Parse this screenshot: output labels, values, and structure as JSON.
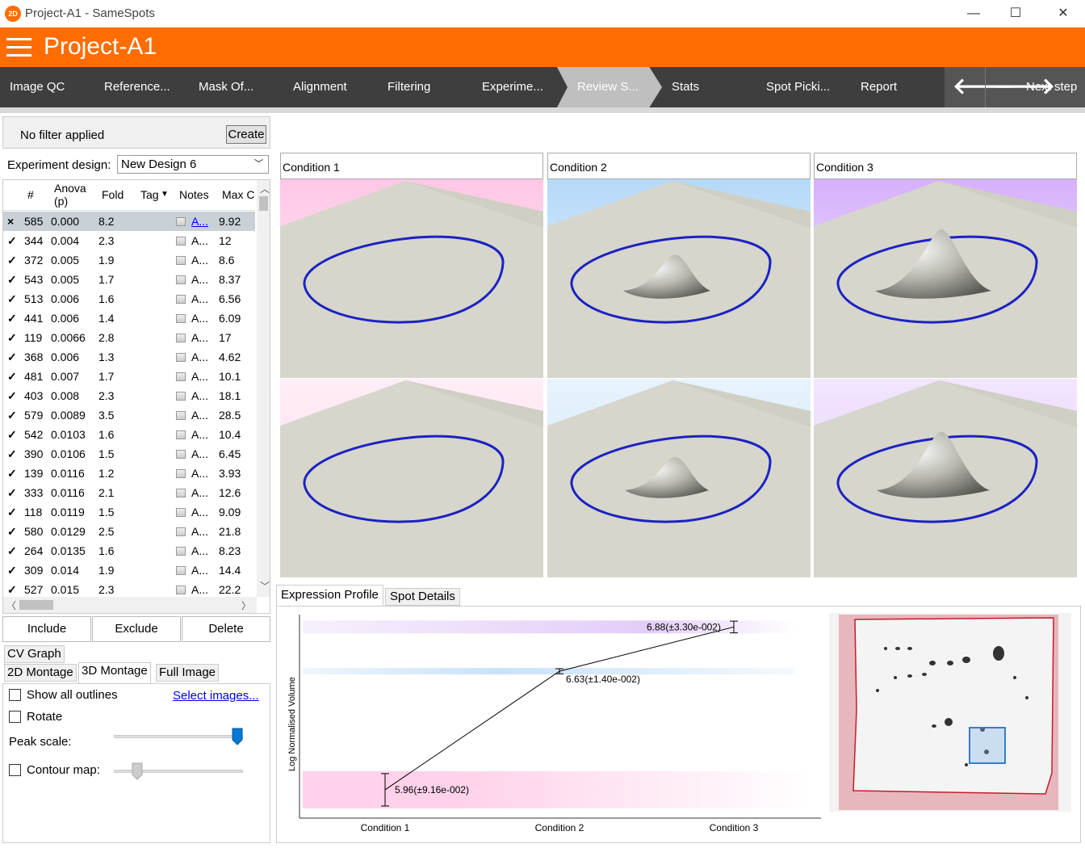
{
  "window": {
    "title": "Project-A1 - SameSpots",
    "logo": "2D",
    "minimize": "—",
    "maximize": "☐",
    "close": "✕"
  },
  "header": {
    "project": "Project-A1"
  },
  "nav": {
    "tabs": [
      "Image QC",
      "Reference...",
      "Mask Of...",
      "Alignment",
      "Filtering",
      "Experime...",
      "Review S...",
      "Stats",
      "Spot Picki...",
      "Report"
    ],
    "active_index": 6,
    "back": "🡐",
    "forward": "🡒",
    "next": "Next step"
  },
  "filter": {
    "text": "No filter applied",
    "create": "Create"
  },
  "design": {
    "label": "Experiment design:",
    "value": "New Design 6"
  },
  "table": {
    "headers": [
      "#",
      "Anova (p)",
      "Fold",
      "Tag",
      "Notes",
      "Max C"
    ],
    "rows": [
      {
        "mark": "×",
        "id": "585",
        "anova": "0.000",
        "fold": "8.2",
        "note": "A...",
        "max": "9.92",
        "selected": true
      },
      {
        "mark": "✓",
        "id": "344",
        "anova": "0.004",
        "fold": "2.3",
        "note": "A...",
        "max": "12"
      },
      {
        "mark": "✓",
        "id": "372",
        "anova": "0.005",
        "fold": "1.9",
        "note": "A...",
        "max": "8.6"
      },
      {
        "mark": "✓",
        "id": "543",
        "anova": "0.005",
        "fold": "1.7",
        "note": "A...",
        "max": "8.37"
      },
      {
        "mark": "✓",
        "id": "513",
        "anova": "0.006",
        "fold": "1.6",
        "note": "A...",
        "max": "6.56"
      },
      {
        "mark": "✓",
        "id": "441",
        "anova": "0.006",
        "fold": "1.4",
        "note": "A...",
        "max": "6.09"
      },
      {
        "mark": "✓",
        "id": "119",
        "anova": "0.0066",
        "fold": "2.8",
        "note": "A...",
        "max": "17"
      },
      {
        "mark": "✓",
        "id": "368",
        "anova": "0.006",
        "fold": "1.3",
        "note": "A...",
        "max": "4.62"
      },
      {
        "mark": "✓",
        "id": "481",
        "anova": "0.007",
        "fold": "1.7",
        "note": "A...",
        "max": "10.1"
      },
      {
        "mark": "✓",
        "id": "403",
        "anova": "0.008",
        "fold": "2.3",
        "note": "A...",
        "max": "18.1"
      },
      {
        "mark": "✓",
        "id": "579",
        "anova": "0.0089",
        "fold": "3.5",
        "note": "A...",
        "max": "28.5"
      },
      {
        "mark": "✓",
        "id": "542",
        "anova": "0.0103",
        "fold": "1.6",
        "note": "A...",
        "max": "10.4"
      },
      {
        "mark": "✓",
        "id": "390",
        "anova": "0.0106",
        "fold": "1.5",
        "note": "A...",
        "max": "6.45"
      },
      {
        "mark": "✓",
        "id": "139",
        "anova": "0.0116",
        "fold": "1.2",
        "note": "A...",
        "max": "3.93"
      },
      {
        "mark": "✓",
        "id": "333",
        "anova": "0.0116",
        "fold": "2.1",
        "note": "A...",
        "max": "12.6"
      },
      {
        "mark": "✓",
        "id": "118",
        "anova": "0.0119",
        "fold": "1.5",
        "note": "A...",
        "max": "9.09"
      },
      {
        "mark": "✓",
        "id": "580",
        "anova": "0.0129",
        "fold": "2.5",
        "note": "A...",
        "max": "21.8"
      },
      {
        "mark": "✓",
        "id": "264",
        "anova": "0.0135",
        "fold": "1.6",
        "note": "A...",
        "max": "8.23"
      },
      {
        "mark": "✓",
        "id": "309",
        "anova": "0.014",
        "fold": "1.9",
        "note": "A...",
        "max": "14.4"
      },
      {
        "mark": "✓",
        "id": "527",
        "anova": "0.015",
        "fold": "2.3",
        "note": "A...",
        "max": "22.2"
      }
    ]
  },
  "actions": {
    "include": "Include",
    "exclude": "Exclude",
    "delete": "Delete"
  },
  "view_tabs": {
    "cv_graph": "CV Graph",
    "montage_2d": "2D Montage",
    "montage_3d": "3D Montage",
    "full_image": "Full Image"
  },
  "options": {
    "show_outlines": "Show all outlines",
    "select_images": "Select images...",
    "rotate": "Rotate",
    "peak_scale": "Peak scale:",
    "contour_map": "Contour map:",
    "peak_scale_value": 1.0,
    "contour_value": 0.15
  },
  "conditions": [
    {
      "name": "Condition 1",
      "color": "#ffb9df",
      "peak": [
        0,
        0
      ]
    },
    {
      "name": "Condition 2",
      "color": "#a3cff7",
      "peak": [
        0.35,
        0.3
      ]
    },
    {
      "name": "Condition 3",
      "color": "#cc9dfb",
      "peak": [
        0.8,
        0.75
      ]
    }
  ],
  "bottom_tabs": {
    "expression": "Expression Profile",
    "details": "Spot Details"
  },
  "chart_data": {
    "type": "line",
    "ylabel": "Log Normalised Volume",
    "categories": [
      "Condition 1",
      "Condition 2",
      "Condition 3"
    ],
    "values": [
      5.96,
      6.63,
      6.88
    ],
    "errors": [
      0.0916,
      0.014,
      0.033
    ],
    "labels": [
      "5.96(±9.16e-002)",
      "6.63(±1.40e-002)",
      "6.88(±3.30e-002)"
    ],
    "band_colors": [
      "#ffd1ea",
      "#c9e1f8",
      "#e3cdf8"
    ],
    "ylim": [
      5.8,
      6.95
    ]
  }
}
